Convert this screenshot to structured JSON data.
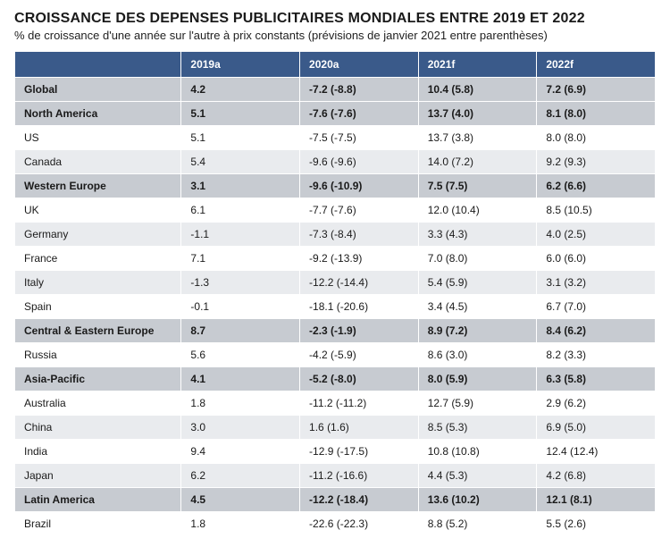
{
  "title": "CROISSANCE DES DEPENSES PUBLICITAIRES MONDIALES ENTRE 2019 ET 2022",
  "subtitle": "% de croissance d'une année sur l'autre à prix constants (prévisions de janvier 2021 entre parenthèses)",
  "table": {
    "columns_label": "",
    "columns": [
      "2019a",
      "2020a",
      "2021f",
      "2022f"
    ],
    "header_bg": "#3a5a8a",
    "header_text_color": "#ffffff",
    "region_row_bg": "#c7cbd1",
    "country_row_even_bg": "#ffffff",
    "country_row_odd_bg": "#e9ebee",
    "col_widths": [
      "26%",
      "18.5%",
      "18.5%",
      "18.5%",
      "18.5%"
    ],
    "rows": [
      {
        "type": "region",
        "label": "Global",
        "values": [
          "4.2",
          "-7.2 (-8.8)",
          "10.4 (5.8)",
          "7.2 (6.9)"
        ]
      },
      {
        "type": "region",
        "label": "North America",
        "values": [
          "5.1",
          "-7.6 (-7.6)",
          "13.7 (4.0)",
          "8.1 (8.0)"
        ]
      },
      {
        "type": "country",
        "label": "US",
        "values": [
          "5.1",
          "-7.5 (-7.5)",
          "13.7 (3.8)",
          "8.0 (8.0)"
        ]
      },
      {
        "type": "country",
        "label": "Canada",
        "values": [
          "5.4",
          "-9.6 (-9.6)",
          "14.0 (7.2)",
          "9.2 (9.3)"
        ]
      },
      {
        "type": "region",
        "label": "Western Europe",
        "values": [
          "3.1",
          "-9.6 (-10.9)",
          "7.5 (7.5)",
          "6.2 (6.6)"
        ]
      },
      {
        "type": "country",
        "label": "UK",
        "values": [
          "6.1",
          "-7.7 (-7.6)",
          "12.0 (10.4)",
          "8.5 (10.5)"
        ]
      },
      {
        "type": "country",
        "label": "Germany",
        "values": [
          "-1.1",
          "-7.3 (-8.4)",
          "3.3 (4.3)",
          "4.0 (2.5)"
        ]
      },
      {
        "type": "country",
        "label": "France",
        "values": [
          "7.1",
          "-9.2 (-13.9)",
          "7.0 (8.0)",
          "6.0 (6.0)"
        ]
      },
      {
        "type": "country",
        "label": "Italy",
        "values": [
          "-1.3",
          "-12.2 (-14.4)",
          "5.4 (5.9)",
          "3.1 (3.2)"
        ]
      },
      {
        "type": "country",
        "label": "Spain",
        "values": [
          "-0.1",
          "-18.1 (-20.6)",
          "3.4 (4.5)",
          "6.7 (7.0)"
        ]
      },
      {
        "type": "region",
        "label": "Central & Eastern Europe",
        "values": [
          "8.7",
          "-2.3 (-1.9)",
          "8.9 (7.2)",
          "8.4 (6.2)"
        ]
      },
      {
        "type": "country",
        "label": "Russia",
        "values": [
          "5.6",
          "-4.2 (-5.9)",
          "8.6 (3.0)",
          "8.2 (3.3)"
        ]
      },
      {
        "type": "region",
        "label": "Asia-Pacific",
        "values": [
          "4.1",
          "-5.2 (-8.0)",
          "8.0 (5.9)",
          "6.3 (5.8)"
        ]
      },
      {
        "type": "country",
        "label": "Australia",
        "values": [
          "1.8",
          "-11.2 (-11.2)",
          "12.7 (5.9)",
          "2.9 (6.2)"
        ]
      },
      {
        "type": "country",
        "label": "China",
        "values": [
          "3.0",
          "1.6 (1.6)",
          "8.5 (5.3)",
          "6.9 (5.0)"
        ]
      },
      {
        "type": "country",
        "label": "India",
        "values": [
          "9.4",
          "-12.9 (-17.5)",
          "10.8 (10.8)",
          "12.4 (12.4)"
        ]
      },
      {
        "type": "country",
        "label": "Japan",
        "values": [
          "6.2",
          "-11.2 (-16.6)",
          "4.4 (5.3)",
          "4.2 (6.8)"
        ]
      },
      {
        "type": "region",
        "label": "Latin America",
        "values": [
          "4.5",
          "-12.2 (-18.4)",
          "13.6 (10.2)",
          "12.1 (8.1)"
        ]
      },
      {
        "type": "country",
        "label": "Brazil",
        "values": [
          "1.8",
          "-22.6 (-22.3)",
          "8.8 (5.2)",
          "5.5 (2.6)"
        ]
      }
    ]
  }
}
